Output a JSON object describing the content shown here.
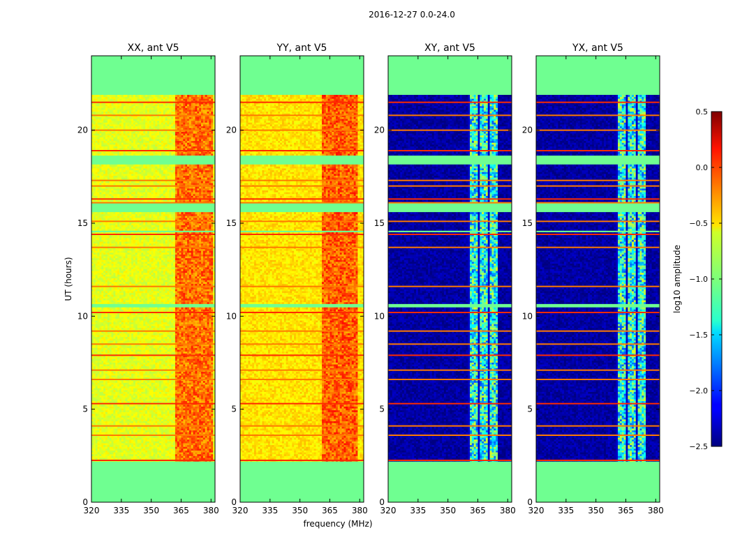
{
  "figure_title": "2016-12-27 0.0-24.0",
  "chart_data": {
    "type": "heatmap",
    "suptitle": "2016-12-27 0.0-24.0",
    "xlabel": "frequency (MHz)",
    "ylabel": "UT (hours)",
    "xlim": [
      320,
      382
    ],
    "ylim": [
      0,
      24
    ],
    "xticks": [
      320,
      335,
      350,
      365,
      380
    ],
    "yticks": [
      0,
      5,
      10,
      15,
      20
    ],
    "panels": [
      {
        "title": "XX, ant V5",
        "kind": "parallel",
        "base_value": -0.7,
        "rfi_band": [
          362,
          380
        ],
        "rfi_value": -0.2
      },
      {
        "title": "YY, ant V5",
        "kind": "parallel",
        "base_value": -0.55,
        "rfi_band": [
          361,
          378
        ],
        "rfi_value": -0.15
      },
      {
        "title": "XY, ant V5",
        "kind": "cross",
        "base_value": -2.4,
        "rfi_band": [
          360,
          374
        ],
        "rfi_value": -1.3
      },
      {
        "title": "YX, ant V5",
        "kind": "cross",
        "base_value": -2.4,
        "rfi_band": [
          360,
          374
        ],
        "rfi_value": -1.3
      }
    ],
    "no_data_value": -1.05,
    "data_ut_range": [
      2.2,
      21.9
    ],
    "no_data_gaps": [
      [
        18.1,
        18.6
      ],
      [
        15.5,
        16.0
      ],
      [
        10.4,
        10.6
      ],
      [
        14.5,
        14.6
      ]
    ],
    "flag_lines_ut": [
      2.25,
      3.6,
      4.1,
      5.3,
      6.6,
      7.1,
      7.9,
      8.5,
      9.2,
      10.2,
      11.6,
      13.7,
      14.4,
      15.1,
      16.1,
      16.3,
      17.0,
      17.3,
      18.9,
      20.0,
      20.8,
      21.5
    ],
    "colorbar": {
      "label": "log10 amplitude",
      "min": -2.5,
      "max": 0.5,
      "ticks": [
        0.5,
        0.0,
        -0.5,
        -1.0,
        -1.5,
        -2.0,
        -2.5
      ],
      "tick_labels": [
        "0.5",
        "0.0",
        "−0.5",
        "−1.0",
        "−1.5",
        "−2.0",
        "−2.5"
      ]
    }
  }
}
